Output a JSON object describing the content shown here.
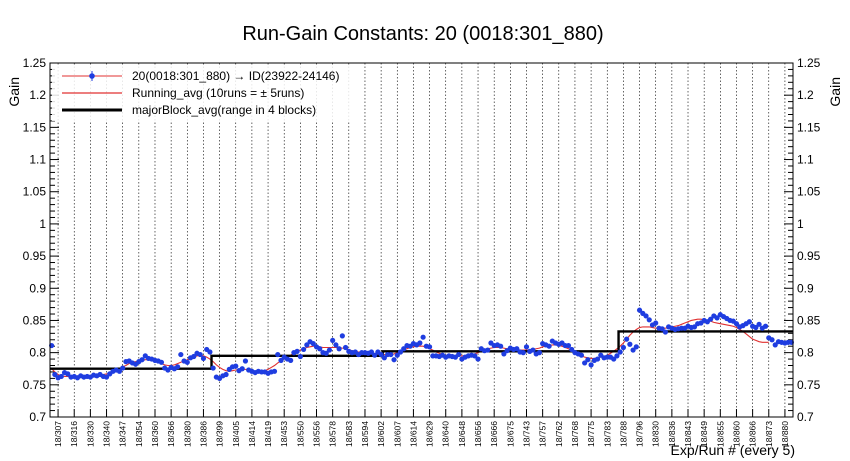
{
  "chart_data": {
    "type": "scatter",
    "title": "Run-Gain Constants: 20 (0018:301_880)",
    "ylabel": "Gain",
    "ylabel_right": "Gain",
    "xlabel": "Exp/Run # (every 5)",
    "ylim": [
      0.7,
      1.25
    ],
    "yticks": [
      "0.7",
      "0.75",
      "0.8",
      "0.85",
      "0.9",
      "0.95",
      "1",
      "1.05",
      "1.1",
      "1.15",
      "1.2",
      "1.25"
    ],
    "categories": [
      "18/307",
      "18/316",
      "18/330",
      "18/340",
      "18/347",
      "18/354",
      "18/360",
      "18/366",
      "18/380",
      "18/386",
      "18/399",
      "18/405",
      "18/414",
      "18/419",
      "18/453",
      "18/550",
      "18/556",
      "18/578",
      "18/583",
      "18/594",
      "18/602",
      "18/607",
      "18/614",
      "18/629",
      "18/640",
      "18/648",
      "18/656",
      "18/666",
      "18/675",
      "18/743",
      "18/757",
      "18/762",
      "18/768",
      "18/775",
      "18/783",
      "18/788",
      "18/796",
      "18/830",
      "18/836",
      "18/843",
      "18/849",
      "18/855",
      "18/860",
      "18/866",
      "18/873",
      "18/880"
    ],
    "legend": {
      "position": "top-left",
      "entries": [
        {
          "label": "20(0018:301_880) → ID(23922-24146)",
          "style": "points",
          "color": "#1f3de0"
        },
        {
          "label": "Running_avg (10runs = ± 5runs)",
          "style": "line",
          "color": "#e03030"
        },
        {
          "label": "majorBlock_avg(range in 4 blocks)",
          "style": "thick-line",
          "color": "#000000"
        }
      ]
    },
    "series": [
      {
        "name": "20(0018:301_880) → ID(23922-24146)",
        "color": "#1f3de0",
        "values": [
          0.811,
          0.766,
          0.761,
          0.763,
          0.769,
          0.767,
          0.762,
          0.763,
          0.761,
          0.764,
          0.762,
          0.763,
          0.762,
          0.765,
          0.764,
          0.766,
          0.763,
          0.762,
          0.767,
          0.771,
          0.773,
          0.771,
          0.776,
          0.786,
          0.787,
          0.784,
          0.782,
          0.786,
          0.789,
          0.795,
          0.791,
          0.79,
          0.788,
          0.787,
          0.785,
          0.776,
          0.773,
          0.777,
          0.775,
          0.778,
          0.797,
          0.787,
          0.785,
          0.792,
          0.794,
          0.799,
          0.797,
          0.791,
          0.805,
          0.801,
          0.776,
          0.762,
          0.76,
          0.764,
          0.766,
          0.774,
          0.778,
          0.779,
          0.772,
          0.775,
          0.787,
          0.773,
          0.771,
          0.769,
          0.771,
          0.77,
          0.77,
          0.768,
          0.77,
          0.771,
          0.797,
          0.788,
          0.793,
          0.79,
          0.788,
          0.8,
          0.802,
          0.794,
          0.805,
          0.812,
          0.817,
          0.814,
          0.809,
          0.806,
          0.8,
          0.799,
          0.804,
          0.819,
          0.812,
          0.806,
          0.826,
          0.808,
          0.802,
          0.8,
          0.801,
          0.797,
          0.8,
          0.8,
          0.799,
          0.801,
          0.796,
          0.801,
          0.797,
          0.792,
          0.797,
          0.797,
          0.789,
          0.796,
          0.801,
          0.806,
          0.811,
          0.81,
          0.814,
          0.812,
          0.815,
          0.824,
          0.81,
          0.809,
          0.795,
          0.795,
          0.794,
          0.796,
          0.793,
          0.795,
          0.794,
          0.793,
          0.797,
          0.79,
          0.793,
          0.795,
          0.796,
          0.795,
          0.79,
          0.806,
          0.803,
          0.804,
          0.815,
          0.811,
          0.812,
          0.81,
          0.798,
          0.803,
          0.807,
          0.805,
          0.806,
          0.801,
          0.8,
          0.809,
          0.802,
          0.804,
          0.798,
          0.8,
          0.814,
          0.812,
          0.81,
          0.818,
          0.815,
          0.813,
          0.815,
          0.811,
          0.811,
          0.805,
          0.8,
          0.798,
          0.796,
          0.784,
          0.789,
          0.781,
          0.788,
          0.79,
          0.796,
          0.792,
          0.793,
          0.793,
          0.79,
          0.795,
          0.801,
          0.808,
          0.821,
          0.813,
          0.804,
          0.809,
          0.866,
          0.861,
          0.857,
          0.851,
          0.843,
          0.846,
          0.838,
          0.837,
          0.832,
          0.84,
          0.838,
          0.836,
          0.837,
          0.838,
          0.838,
          0.841,
          0.839,
          0.84,
          0.845,
          0.846,
          0.85,
          0.848,
          0.852,
          0.857,
          0.854,
          0.859,
          0.856,
          0.853,
          0.85,
          0.849,
          0.845,
          0.84,
          0.842,
          0.845,
          0.848,
          0.841,
          0.839,
          0.844,
          0.838,
          0.841,
          0.823,
          0.82,
          0.812,
          0.817,
          0.816,
          0.815,
          0.816,
          0.816
        ]
      },
      {
        "name": "Running_avg (10runs = ± 5runs)",
        "color": "#e03030",
        "values": [
          0.775,
          0.77,
          0.766,
          0.764,
          0.763,
          0.763,
          0.763,
          0.763,
          0.763,
          0.763,
          0.763,
          0.763,
          0.763,
          0.764,
          0.764,
          0.765,
          0.766,
          0.767,
          0.768,
          0.77,
          0.772,
          0.775,
          0.778,
          0.78,
          0.783,
          0.785,
          0.786,
          0.787,
          0.788,
          0.789,
          0.789,
          0.788,
          0.787,
          0.785,
          0.783,
          0.781,
          0.78,
          0.78,
          0.781,
          0.783,
          0.785,
          0.787,
          0.789,
          0.791,
          0.793,
          0.795,
          0.795,
          0.795,
          0.793,
          0.79,
          0.786,
          0.781,
          0.777,
          0.774,
          0.772,
          0.771,
          0.772,
          0.773,
          0.774,
          0.774,
          0.774,
          0.773,
          0.772,
          0.771,
          0.771,
          0.771,
          0.772,
          0.774,
          0.777,
          0.78,
          0.784,
          0.787,
          0.79,
          0.793,
          0.796,
          0.799,
          0.802,
          0.804,
          0.806,
          0.808,
          0.809,
          0.81,
          0.81,
          0.809,
          0.808,
          0.808,
          0.808,
          0.808,
          0.808,
          0.808,
          0.807,
          0.806,
          0.805,
          0.803,
          0.802,
          0.801,
          0.8,
          0.8,
          0.799,
          0.799,
          0.798,
          0.798,
          0.797,
          0.797,
          0.797,
          0.797,
          0.798,
          0.8,
          0.802,
          0.804,
          0.806,
          0.808,
          0.809,
          0.81,
          0.81,
          0.81,
          0.808,
          0.806,
          0.804,
          0.801,
          0.799,
          0.797,
          0.796,
          0.795,
          0.795,
          0.795,
          0.795,
          0.795,
          0.795,
          0.796,
          0.797,
          0.798,
          0.8,
          0.802,
          0.804,
          0.806,
          0.807,
          0.808,
          0.808,
          0.808,
          0.807,
          0.806,
          0.806,
          0.805,
          0.805,
          0.804,
          0.804,
          0.804,
          0.804,
          0.805,
          0.806,
          0.807,
          0.809,
          0.81,
          0.811,
          0.812,
          0.812,
          0.811,
          0.81,
          0.808,
          0.806,
          0.803,
          0.8,
          0.797,
          0.795,
          0.793,
          0.792,
          0.791,
          0.791,
          0.792,
          0.793,
          0.794,
          0.796,
          0.799,
          0.802,
          0.806,
          0.81,
          0.815,
          0.821,
          0.827,
          0.832,
          0.836,
          0.839,
          0.84,
          0.84,
          0.84,
          0.839,
          0.838,
          0.838,
          0.838,
          0.838,
          0.839,
          0.84,
          0.841,
          0.842,
          0.844,
          0.846,
          0.848,
          0.85,
          0.851,
          0.852,
          0.852,
          0.851,
          0.85,
          0.849,
          0.847,
          0.846,
          0.845,
          0.844,
          0.843,
          0.842,
          0.841,
          0.839,
          0.836,
          0.833,
          0.829,
          0.825,
          0.821,
          0.819,
          0.817,
          0.816,
          0.816,
          0.816
        ]
      },
      {
        "name": "majorBlock_avg(range in 4 blocks)",
        "color": "#000000",
        "blocks": [
          {
            "from_index": 0,
            "to_index": 50,
            "value": 0.775
          },
          {
            "from_index": 50,
            "to_index": 103,
            "value": 0.795
          },
          {
            "from_index": 103,
            "to_index": 176,
            "value": 0.802
          },
          {
            "from_index": 176,
            "to_index": 236,
            "value": 0.833
          }
        ]
      }
    ]
  }
}
